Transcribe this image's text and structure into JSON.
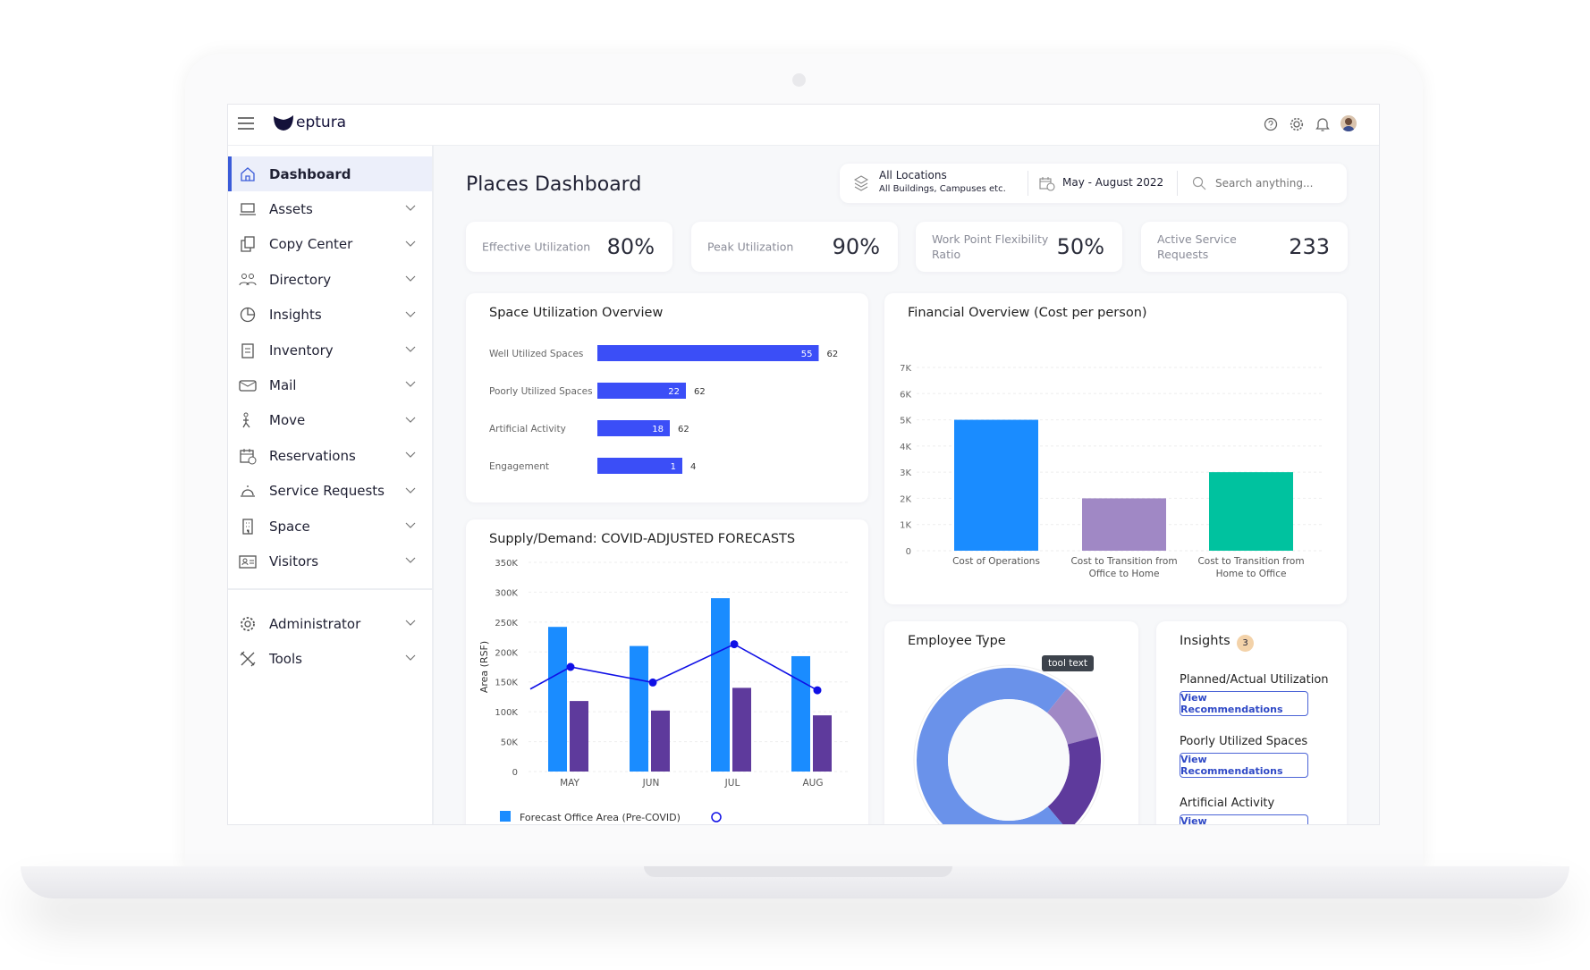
{
  "app": {
    "brand": "eptura"
  },
  "sidebar": {
    "items": [
      {
        "label": "Dashboard",
        "icon": "home-icon",
        "active": true
      },
      {
        "label": "Assets",
        "icon": "laptop-icon"
      },
      {
        "label": "Copy Center",
        "icon": "copy-icon"
      },
      {
        "label": "Directory",
        "icon": "people-icon"
      },
      {
        "label": "Insights",
        "icon": "pie-icon"
      },
      {
        "label": "Inventory",
        "icon": "clipboard-icon"
      },
      {
        "label": "Mail",
        "icon": "mail-icon"
      },
      {
        "label": "Move",
        "icon": "move-icon"
      },
      {
        "label": "Reservations",
        "icon": "calendar-icon"
      },
      {
        "label": "Service Requests",
        "icon": "bell-service-icon"
      },
      {
        "label": "Space",
        "icon": "building-icon"
      },
      {
        "label": "Visitors",
        "icon": "id-card-icon"
      }
    ],
    "admin_items": [
      {
        "label": "Administrator",
        "icon": "gear-icon"
      },
      {
        "label": "Tools",
        "icon": "tools-icon"
      }
    ]
  },
  "page": {
    "title": "Places Dashboard"
  },
  "filters": {
    "location_title": "All Locations",
    "location_sub": "All Buildings, Campuses etc.",
    "date_range": "May - August 2022",
    "search_placeholder": "Search anything..."
  },
  "kpis": [
    {
      "label": "Effective Utilization",
      "value": "80%"
    },
    {
      "label": "Peak Utilization",
      "value": "90%"
    },
    {
      "label": "Work Point Flexibility Ratio",
      "value": "50%"
    },
    {
      "label": "Active Service Requests",
      "value": "233"
    }
  ],
  "colors": {
    "accent": "#3a5bd9",
    "bar_blue": "#3b4ef7",
    "forecast_blue": "#1a8cff",
    "purple": "#5e3a9c",
    "light_purple": "#a088c5",
    "teal": "#00c29f",
    "donut_blue": "#6a92ea"
  },
  "chart_data": [
    {
      "type": "bar",
      "orientation": "horizontal",
      "title": "Space Utilization Overview",
      "categories": [
        "Well Utilized Spaces",
        "Poorly Utilized Spaces",
        "Artificial Activity",
        "Engagement"
      ],
      "values": [
        55,
        22,
        18,
        1
      ],
      "totals": [
        62,
        62,
        62,
        4
      ]
    },
    {
      "type": "bar",
      "title": "Financial Overview (Cost per person)",
      "categories": [
        "Cost of Operations",
        "Cost to Transition from Office to Home",
        "Cost to Transition from Home to Office"
      ],
      "values": [
        5000,
        2000,
        3000
      ],
      "ylim": [
        0,
        7000
      ],
      "yticks": [
        "0",
        "1K",
        "2K",
        "3K",
        "4K",
        "5K",
        "6K",
        "7K"
      ],
      "colors": [
        "#1a8cff",
        "#a088c5",
        "#00c29f"
      ],
      "grid": true
    },
    {
      "type": "bar",
      "title": "Supply/Demand: COVID-ADJUSTED FORECASTS",
      "ylabel": "Area (RSF)",
      "categories": [
        "MAY",
        "JUN",
        "JUL",
        "AUG"
      ],
      "ylim": [
        0,
        350000
      ],
      "yticks": [
        "0",
        "50K",
        "100K",
        "150K",
        "200K",
        "250K",
        "300K",
        "350K"
      ],
      "series": [
        {
          "name": "Forecast Office Area (Pre-COVID)",
          "values": [
            242000,
            210000,
            290000,
            193000
          ],
          "color": "#1a8cff"
        },
        {
          "values": [
            118000,
            102000,
            140000,
            94000
          ],
          "color": "#5e3a9c"
        },
        {
          "type": "line",
          "values": [
            175000,
            149000,
            213000,
            136000
          ],
          "color": "#1010e6"
        }
      ],
      "grid": true
    },
    {
      "type": "pie",
      "title": "Employee Type",
      "donut": true,
      "values": [
        72,
        10,
        18
      ],
      "colors": [
        "#6a92ea",
        "#a088c5",
        "#5e3a9c"
      ],
      "tooltip": "tool text"
    }
  ],
  "insights": {
    "title": "Insights",
    "count": "3",
    "items": [
      {
        "label": "Planned/Actual Utilization",
        "button": "View Recommendations"
      },
      {
        "label": "Poorly Utilized Spaces",
        "button": "View Recommendations"
      },
      {
        "label": "Artificial Activity",
        "button": "View Recommendations"
      }
    ]
  }
}
